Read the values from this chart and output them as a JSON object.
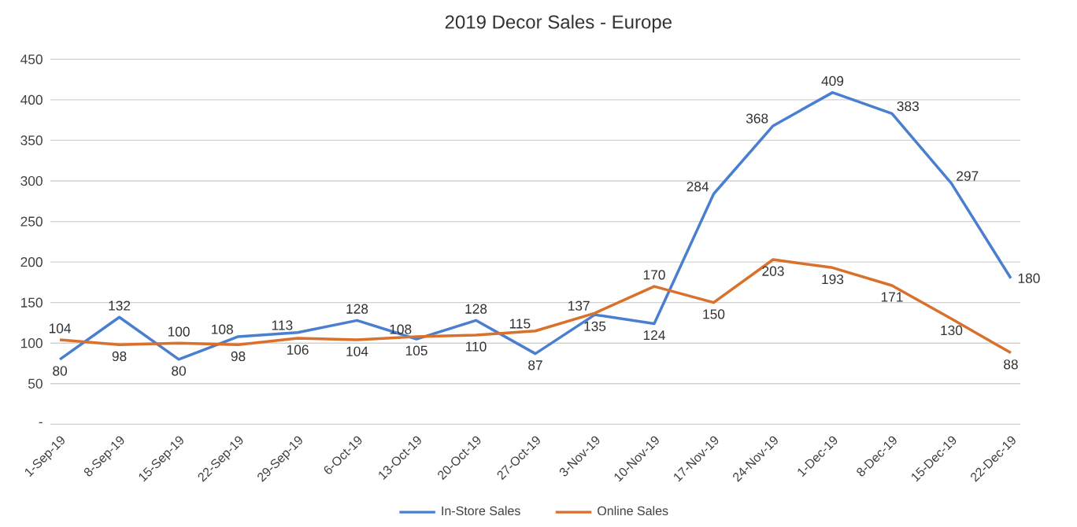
{
  "chart_data": {
    "type": "line",
    "title": "2019 Decor Sales - Europe",
    "categories": [
      "1-Sep-19",
      "8-Sep-19",
      "15-Sep-19",
      "22-Sep-19",
      "29-Sep-19",
      "6-Oct-19",
      "13-Oct-19",
      "20-Oct-19",
      "27-Oct-19",
      "3-Nov-19",
      "10-Nov-19",
      "17-Nov-19",
      "24-Nov-19",
      "1-Dec-19",
      "8-Dec-19",
      "15-Dec-19",
      "22-Dec-19"
    ],
    "series": [
      {
        "name": "In-Store Sales",
        "color": "#4a7fcf",
        "values": [
          80,
          132,
          80,
          108,
          113,
          128,
          105,
          128,
          87,
          135,
          124,
          284,
          368,
          409,
          383,
          297,
          180
        ]
      },
      {
        "name": "Online Sales",
        "color": "#d9702b",
        "values": [
          104,
          98,
          100,
          98,
          106,
          104,
          108,
          110,
          115,
          137,
          170,
          150,
          203,
          193,
          171,
          130,
          88
        ]
      }
    ],
    "ylim": [
      0,
      450
    ],
    "yticks": [
      {
        "value": 0,
        "label": "-"
      },
      50,
      100,
      150,
      200,
      250,
      300,
      350,
      400,
      450
    ],
    "grid": "y",
    "legend": "bottom",
    "data_labels": true,
    "line_style": "solid"
  }
}
